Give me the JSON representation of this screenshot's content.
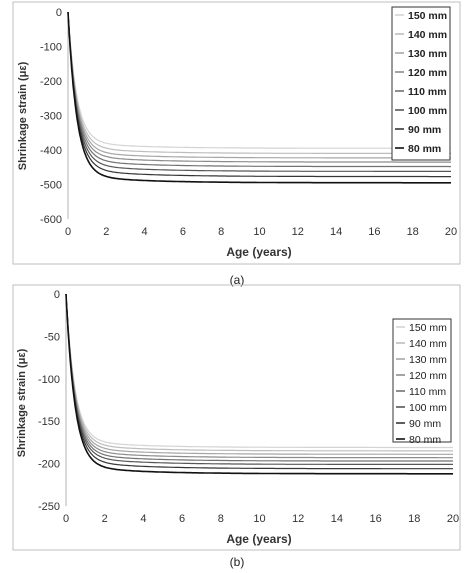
{
  "figure": {
    "panels": [
      "(a)",
      "(b)"
    ]
  },
  "chart_data": [
    {
      "type": "line",
      "panel_label": "(a)",
      "xlabel": "Age (years)",
      "ylabel": "Shrinkage strain (με)",
      "xlim": [
        0,
        20
      ],
      "ylim": [
        -600,
        0
      ],
      "xticks": [
        0,
        2,
        4,
        6,
        8,
        10,
        12,
        14,
        16,
        18,
        20
      ],
      "yticks": [
        0,
        -100,
        -200,
        -300,
        -400,
        -500,
        -600
      ],
      "grid": false,
      "legend_position": "top-right",
      "series": [
        {
          "name": "150 mm",
          "final": -395,
          "color": "#d4d4d4"
        },
        {
          "name": "140 mm",
          "final": -410,
          "color": "#bdbdbd"
        },
        {
          "name": "130 mm",
          "final": -423,
          "color": "#a6a6a6"
        },
        {
          "name": "120 mm",
          "final": -435,
          "color": "#8c8c8c"
        },
        {
          "name": "110 mm",
          "final": -448,
          "color": "#727272"
        },
        {
          "name": "100 mm",
          "final": -462,
          "color": "#575757"
        },
        {
          "name": "90 mm",
          "final": -477,
          "color": "#363636"
        },
        {
          "name": "80 mm",
          "final": -495,
          "color": "#111111"
        }
      ]
    },
    {
      "type": "line",
      "panel_label": "(b)",
      "xlabel": "Age (years)",
      "ylabel": "Shrinkage strain (με)",
      "xlim": [
        0,
        20
      ],
      "ylim": [
        -250,
        0
      ],
      "xticks": [
        0,
        2,
        4,
        6,
        8,
        10,
        12,
        14,
        16,
        18,
        20
      ],
      "yticks": [
        0,
        -50,
        -100,
        -150,
        -200,
        -250
      ],
      "grid": false,
      "legend_position": "top-right",
      "series": [
        {
          "name": "150 mm",
          "final": -181,
          "color": "#d4d4d4"
        },
        {
          "name": "140 mm",
          "final": -185,
          "color": "#bdbdbd"
        },
        {
          "name": "130 mm",
          "final": -189,
          "color": "#a6a6a6"
        },
        {
          "name": "120 mm",
          "final": -193,
          "color": "#8c8c8c"
        },
        {
          "name": "110 mm",
          "final": -197,
          "color": "#727272"
        },
        {
          "name": "100 mm",
          "final": -201,
          "color": "#575757"
        },
        {
          "name": "90 mm",
          "final": -206,
          "color": "#363636"
        },
        {
          "name": "80 mm",
          "final": -212,
          "color": "#111111"
        }
      ]
    }
  ]
}
